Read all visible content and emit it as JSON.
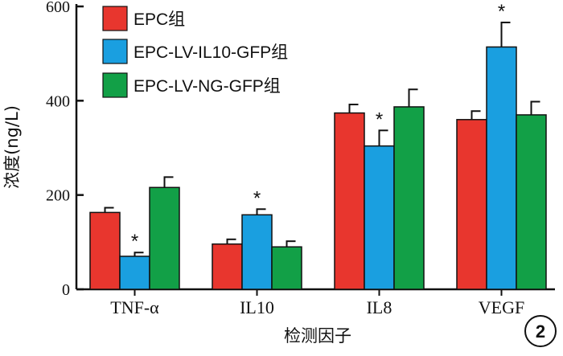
{
  "chart_data": {
    "type": "bar",
    "categories": [
      "TNF-α",
      "IL10",
      "IL8",
      "VEGF"
    ],
    "series": [
      {
        "name": "EPC组",
        "color": "#e8362e",
        "values": [
          163,
          96,
          374,
          360
        ],
        "errors": [
          10,
          10,
          18,
          18
        ]
      },
      {
        "name": "EPC-LV-IL10-GFP组",
        "color": "#1a9fe0",
        "values": [
          70,
          158,
          304,
          514
        ],
        "errors": [
          8,
          12,
          33,
          52
        ]
      },
      {
        "name": "EPC-LV-NG-GFP组",
        "color": "#12a047",
        "values": [
          216,
          90,
          387,
          370
        ],
        "errors": [
          22,
          12,
          37,
          28
        ]
      }
    ],
    "significance": [
      {
        "category": "TNF-α",
        "series": "EPC-LV-IL10-GFP组",
        "mark": "*"
      },
      {
        "category": "IL10",
        "series": "EPC-LV-IL10-GFP组",
        "mark": "*"
      },
      {
        "category": "IL8",
        "series": "EPC-LV-IL10-GFP组",
        "mark": "*"
      },
      {
        "category": "VEGF",
        "series": "EPC-LV-IL10-GFP组",
        "mark": "*"
      }
    ],
    "yticks": [
      0,
      200,
      400,
      600
    ],
    "ylim": [
      0,
      600
    ],
    "ylabel": "浓度(ng/L)",
    "xlabel": "检测因子",
    "legend_position": "top-left",
    "grid": false,
    "panel_label": "2"
  }
}
